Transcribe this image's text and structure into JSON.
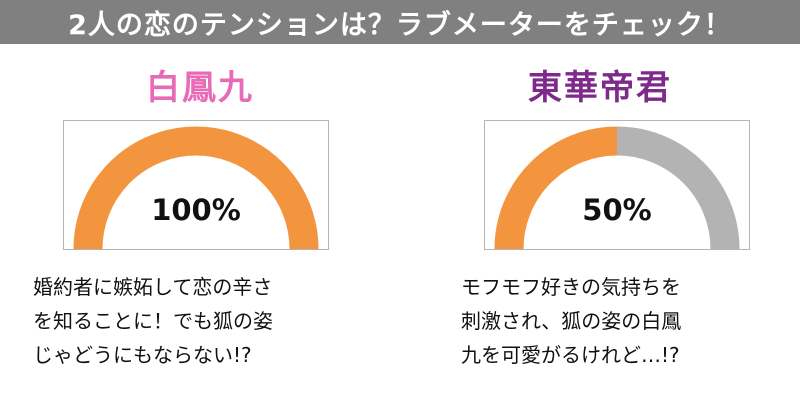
{
  "banner": {
    "title": "2人の恋のテンションは？ラブメーターをチェック！",
    "bg_color": "#808080",
    "text_color": "#ffffff"
  },
  "characters": [
    {
      "name": "白鳳九",
      "name_color": "#e86bb8",
      "love_percent": 100,
      "percent_label": "100%",
      "fill_color": "#f3943f",
      "empty_color": "#b3b3b3",
      "description": [
        "婚約者に嫉妬して恋の辛さ",
        "を知ることに！でも狐の姿",
        "じゃどうにもならない!?"
      ]
    },
    {
      "name": "東華帝君",
      "name_color": "#7e2a8a",
      "love_percent": 50,
      "percent_label": "50%",
      "fill_color": "#f3943f",
      "empty_color": "#b3b3b3",
      "description": [
        "モフモフ好きの気持ちを",
        "刺激され、狐の姿の白鳳",
        "九を可愛がるけれど…!?"
      ]
    }
  ]
}
